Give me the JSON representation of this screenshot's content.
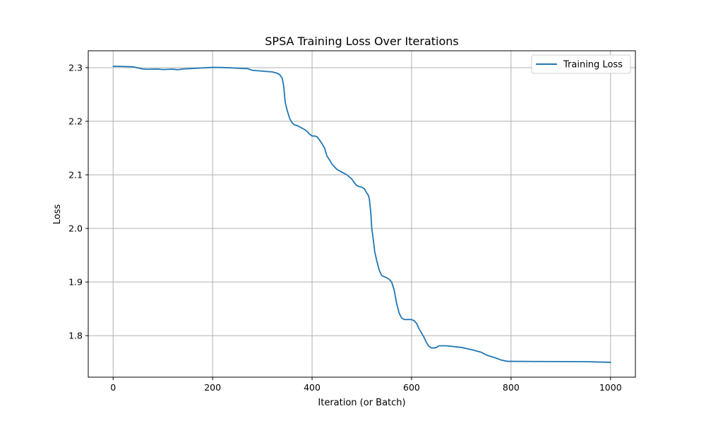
{
  "chart_data": {
    "type": "line",
    "title": "SPSA Training Loss Over Iterations",
    "xlabel": "Iteration (or Batch)",
    "ylabel": "Loss",
    "xlim": [
      -50,
      1050
    ],
    "ylim": [
      1.7225,
      2.3315
    ],
    "xticks": [
      0,
      200,
      400,
      600,
      800,
      1000
    ],
    "yticks": [
      1.8,
      1.9,
      2.0,
      2.1,
      2.2,
      2.3
    ],
    "xtick_labels": [
      "0",
      "200",
      "400",
      "600",
      "800",
      "1000"
    ],
    "ytick_labels": [
      "1.8",
      "1.9",
      "2.0",
      "2.1",
      "2.2",
      "2.3"
    ],
    "grid": true,
    "legend": "top-right",
    "series": [
      {
        "name": "Training Loss",
        "color": "#1f77b4",
        "x": [
          0,
          20,
          40,
          60,
          70,
          80,
          90,
          100,
          110,
          120,
          130,
          140,
          160,
          180,
          200,
          220,
          240,
          260,
          270,
          280,
          300,
          320,
          330,
          335,
          340,
          343,
          346,
          350,
          355,
          360,
          365,
          370,
          375,
          380,
          385,
          390,
          395,
          400,
          405,
          410,
          415,
          420,
          425,
          430,
          435,
          440,
          445,
          450,
          460,
          470,
          475,
          480,
          485,
          490,
          495,
          500,
          505,
          510,
          513,
          515,
          518,
          520,
          523,
          526,
          530,
          535,
          540,
          545,
          550,
          555,
          560,
          565,
          570,
          575,
          580,
          585,
          590,
          595,
          600,
          605,
          610,
          615,
          620,
          625,
          630,
          635,
          640,
          645,
          650,
          655,
          660,
          665,
          670,
          680,
          690,
          700,
          710,
          720,
          730,
          740,
          750,
          760,
          770,
          780,
          790,
          795,
          800,
          850,
          900,
          950,
          1000
        ],
        "y": [
          2.3025,
          2.3022,
          2.3015,
          2.2975,
          2.297,
          2.2972,
          2.2975,
          2.2965,
          2.2968,
          2.2972,
          2.2962,
          2.2975,
          2.2985,
          2.2995,
          2.3005,
          2.3002,
          2.2995,
          2.2985,
          2.2982,
          2.295,
          2.2935,
          2.292,
          2.2895,
          2.287,
          2.28,
          2.265,
          2.235,
          2.22,
          2.205,
          2.197,
          2.193,
          2.192,
          2.1895,
          2.187,
          2.1845,
          2.181,
          2.176,
          2.1725,
          2.1725,
          2.171,
          2.165,
          2.158,
          2.15,
          2.135,
          2.128,
          2.12,
          2.115,
          2.11,
          2.105,
          2.1,
          2.096,
          2.092,
          2.085,
          2.08,
          2.078,
          2.077,
          2.074,
          2.066,
          2.062,
          2.056,
          2.03,
          2.0,
          1.98,
          1.956,
          1.94,
          1.922,
          1.912,
          1.91,
          1.908,
          1.905,
          1.9,
          1.885,
          1.86,
          1.842,
          1.833,
          1.83,
          1.83,
          1.83,
          1.83,
          1.828,
          1.823,
          1.813,
          1.805,
          1.797,
          1.787,
          1.78,
          1.777,
          1.777,
          1.778,
          1.781,
          1.781,
          1.781,
          1.781,
          1.78,
          1.779,
          1.778,
          1.776,
          1.774,
          1.7715,
          1.769,
          1.764,
          1.761,
          1.758,
          1.7545,
          1.7525,
          1.752,
          1.752,
          1.7518,
          1.7516,
          1.7514,
          1.7502
        ]
      }
    ]
  }
}
